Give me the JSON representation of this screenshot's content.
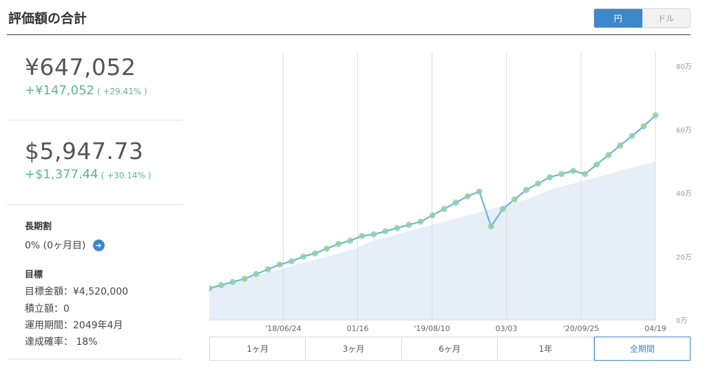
{
  "header": {
    "title": "評価額の合計"
  },
  "currency_toggle": {
    "options": [
      "円",
      "ドル"
    ],
    "selected": "円"
  },
  "jpy": {
    "amount": "¥647,052",
    "change": "+¥147,052",
    "change_pct": "( +29.41% )"
  },
  "usd": {
    "amount": "$5,947.73",
    "change": "+$1,377.44",
    "change_pct": "( +30.14% )"
  },
  "long_term_discount": {
    "label": "長期割",
    "value": "0% (0ヶ月目)"
  },
  "goal": {
    "label": "目標",
    "target_amount": "目標金額：¥4,520,000",
    "contribution": "積立額：0",
    "period": "運用期間：2049年4月",
    "probability": "達成確率： 18%"
  },
  "periods": [
    "1ヶ月",
    "3ヶ月",
    "6ヶ月",
    "1年",
    "全期間"
  ],
  "selected_period": "全期間",
  "colors": {
    "accent": "#3d88c9",
    "positive": "#5ab88a",
    "line": "#6fb1e0",
    "area": "#e6eef7",
    "marker": "#8fd0a4"
  },
  "chart_data": {
    "type": "area",
    "xlabels": [
      "'18/06/24",
      "01/16",
      "'19/08/10",
      "03/03",
      "'20/09/25",
      "04/19"
    ],
    "ylabels": [
      "0万",
      "20万",
      "40万",
      "60万",
      "80万"
    ],
    "ylim": [
      0,
      80
    ],
    "series": [
      {
        "values": [
          10,
          11,
          12,
          13,
          14.5,
          16,
          17.5,
          18.5,
          20,
          21,
          22.5,
          24,
          25,
          26.5,
          27,
          28,
          29,
          30,
          31,
          33,
          35,
          37,
          39,
          40.5,
          29.5,
          35,
          38,
          41,
          43,
          45,
          46,
          47,
          46,
          49,
          52,
          55,
          58,
          61,
          64.5
        ]
      },
      {
        "values": [
          10,
          11,
          12,
          13,
          14,
          15,
          16,
          17,
          18,
          19,
          20,
          21,
          22,
          23.5,
          25,
          26,
          27,
          28,
          29,
          30,
          31,
          32,
          33,
          34,
          35,
          36,
          37,
          38,
          39.5,
          41,
          42,
          43,
          44,
          45,
          46,
          47,
          48,
          49,
          50
        ]
      }
    ]
  }
}
